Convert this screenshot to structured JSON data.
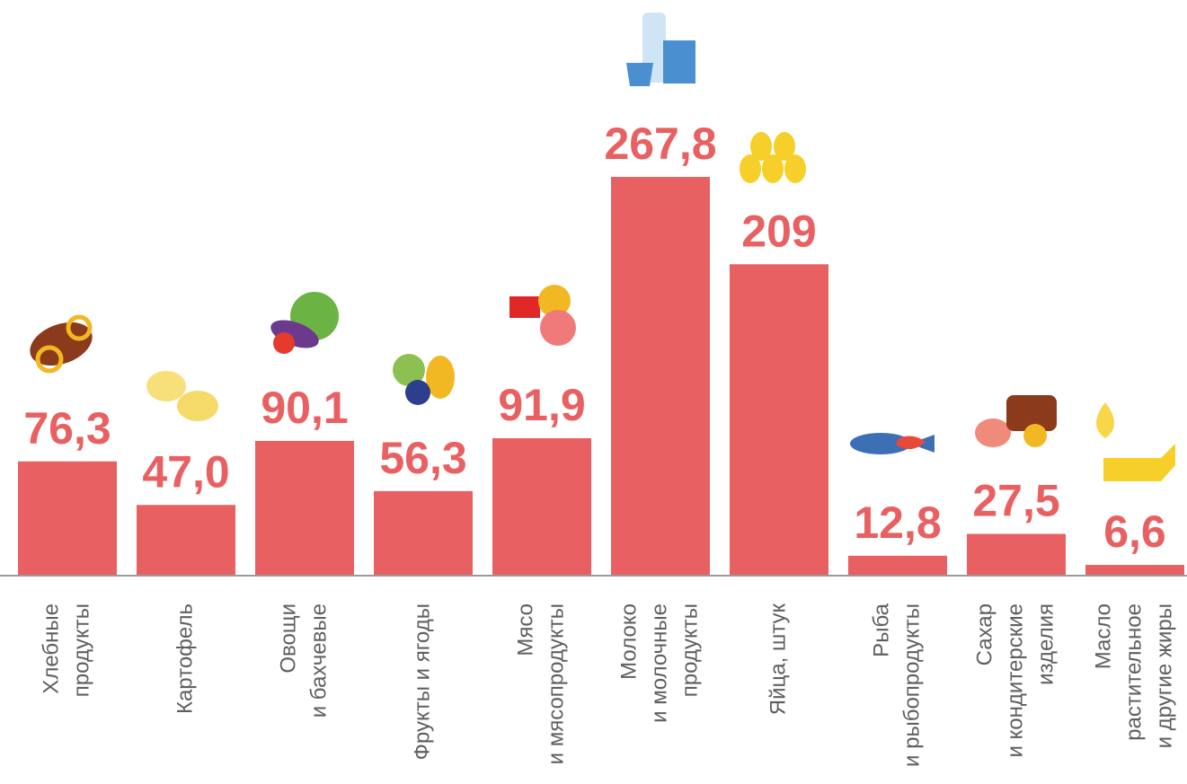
{
  "chart_data": {
    "type": "bar",
    "categories": [
      [
        "Хлебные",
        "продукты"
      ],
      [
        "Картофель"
      ],
      [
        "Овощи",
        "и бахчевые"
      ],
      [
        "Фрукты и ягоды"
      ],
      [
        "Мясо",
        "и мясопродукты"
      ],
      [
        "Молоко",
        "и молочные",
        "продукты"
      ],
      [
        "Яйца, штук"
      ],
      [
        "Рыба",
        "и рыбопродукты"
      ],
      [
        "Сахар",
        "и кондитерские",
        "изделия"
      ],
      [
        "Масло",
        "растительное",
        "и другие жиры"
      ]
    ],
    "values": [
      76.3,
      47.0,
      90.1,
      56.3,
      91.9,
      267.8,
      209,
      12.8,
      27.5,
      6.6
    ],
    "value_labels": [
      "76,3",
      "47,0",
      "90,1",
      "56,3",
      "91,9",
      "267,8",
      "209",
      "12,8",
      "27,5",
      "6,6"
    ],
    "color": "#e86062"
  }
}
